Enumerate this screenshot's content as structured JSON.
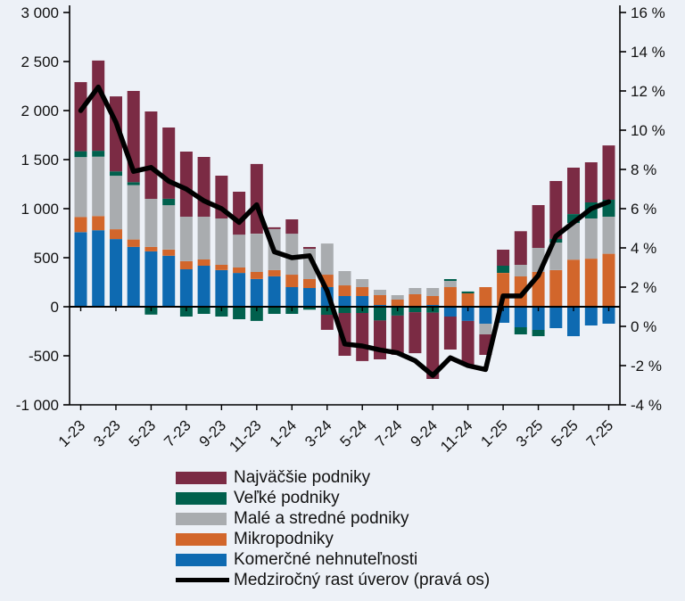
{
  "chart_data": {
    "type": "bar",
    "stacked": true,
    "title": "",
    "background": "#edf1f7",
    "x": [
      "1-23",
      "2-23",
      "3-23",
      "4-23",
      "5-23",
      "6-23",
      "7-23",
      "8-23",
      "9-23",
      "10-23",
      "11-23",
      "12-23",
      "1-24",
      "2-24",
      "3-24",
      "4-24",
      "5-24",
      "6-24",
      "7-24",
      "8-24",
      "9-24",
      "10-24",
      "11-24",
      "12-24",
      "1-25",
      "2-25",
      "3-25",
      "4-25",
      "5-25",
      "6-25",
      "7-25"
    ],
    "x_ticks_every": 2,
    "series": [
      {
        "name": "Komerčné nehnuteľnosti",
        "color": "#0e6ab1",
        "values": [
          760,
          780,
          690,
          610,
          565,
          520,
          382,
          418,
          373,
          345,
          282,
          310,
          200,
          191,
          200,
          109,
          109,
          18,
          0,
          0,
          18,
          -100,
          -145,
          -173,
          -164,
          -209,
          -236,
          -218,
          -300,
          -191,
          -173
        ]
      },
      {
        "name": "Mikropodniky",
        "color": "#d2662b",
        "values": [
          155,
          145,
          100,
          75,
          45,
          62,
          82,
          64,
          54,
          55,
          73,
          64,
          127,
          91,
          127,
          109,
          91,
          100,
          73,
          127,
          91,
          200,
          136,
          200,
          345,
          309,
          355,
          373,
          480,
          490,
          540
        ]
      },
      {
        "name": "Malé a stredné podniky",
        "color": "#a9acaf",
        "values": [
          610,
          605,
          545,
          555,
          490,
          454,
          454,
          436,
          473,
          336,
          390,
          418,
          418,
          309,
          318,
          146,
          82,
          55,
          45,
          64,
          82,
          64,
          0,
          -109,
          0,
          118,
          245,
          282,
          374,
          410,
          378
        ]
      },
      {
        "name": "Veľké podniky",
        "color": "#00604d",
        "values": [
          60,
          60,
          45,
          30,
          -80,
          65,
          -100,
          -73,
          -100,
          -127,
          -145,
          -73,
          -73,
          -30,
          -82,
          -64,
          -64,
          -140,
          -90,
          -55,
          -60,
          18,
          19,
          0,
          73,
          -73,
          -64,
          36,
          91,
          164,
          173
        ]
      },
      {
        "name": "Najväčšie podniky",
        "color": "#7b2b44",
        "values": [
          705,
          920,
          765,
          930,
          891,
          726,
          664,
          609,
          436,
          437,
          710,
          18,
          146,
          18,
          -154,
          -436,
          -490,
          -396,
          -400,
          -418,
          -676,
          -336,
          -455,
          -209,
          164,
          343,
          436,
          591,
          473,
          409,
          554
        ]
      }
    ],
    "line_series": {
      "name": "Medziročný rast úverov (pravá os)",
      "color": "#000000",
      "axis": "right",
      "values": [
        11.0,
        12.2,
        10.4,
        7.9,
        8.1,
        7.4,
        7.0,
        6.4,
        6.0,
        5.3,
        6.2,
        3.8,
        3.5,
        3.6,
        1.8,
        -0.9,
        -1.0,
        -1.2,
        -1.35,
        -1.75,
        -2.5,
        -1.6,
        -2.0,
        -2.2,
        1.55,
        1.55,
        2.6,
        4.6,
        5.3,
        6.0,
        6.35
      ]
    },
    "left_axis": {
      "min": -1000,
      "max": 3000,
      "step": 500,
      "tick_labels": [
        "-1 000",
        "-500",
        "0",
        "500",
        "1 000",
        "1 500",
        "2 000",
        "2 500",
        "3 000"
      ]
    },
    "right_axis": {
      "min": -4,
      "max": 16,
      "step": 2,
      "tick_labels": [
        "-4 %",
        "-2 %",
        "0 %",
        "2 %",
        "4 %",
        "6 %",
        "8 %",
        "10 %",
        "12 %",
        "14 %",
        "16 %"
      ]
    },
    "legend": [
      {
        "label": "Najväčšie podniky",
        "color": "#7b2b44",
        "kind": "patch"
      },
      {
        "label": "Veľké podniky",
        "color": "#00604d",
        "kind": "patch"
      },
      {
        "label": "Malé a stredné podniky",
        "color": "#a9acaf",
        "kind": "patch"
      },
      {
        "label": "Mikropodniky",
        "color": "#d2662b",
        "kind": "patch"
      },
      {
        "label": "Komerčné nehnuteľnosti",
        "color": "#0e6ab1",
        "kind": "patch"
      },
      {
        "label": "Medziročný rast úverov (pravá os)",
        "color": "#000000",
        "kind": "line"
      }
    ]
  }
}
